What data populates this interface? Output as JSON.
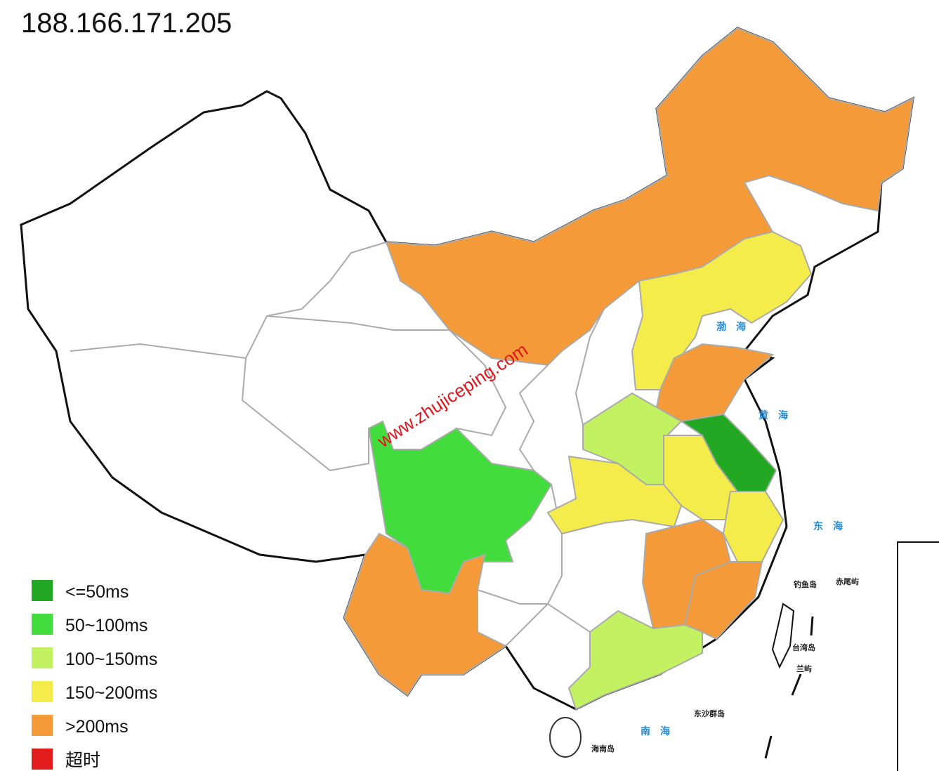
{
  "header": {
    "title": "188.166.171.205"
  },
  "legend": [
    {
      "label": "<=50ms",
      "color": "#22a822"
    },
    {
      "label": "50~100ms",
      "color": "#42dc3c"
    },
    {
      "label": "100~150ms",
      "color": "#c2f262"
    },
    {
      "label": "150~200ms",
      "color": "#f4ec4a"
    },
    {
      "label": ">200ms",
      "color": "#f49a38"
    },
    {
      "label": "超时",
      "color": "#e21c1c"
    }
  ],
  "watermark": "www.zhujiceping.com",
  "seas": [
    "渤海",
    "黄海",
    "东海",
    "南海"
  ],
  "islands": [
    "钓鱼岛",
    "赤尾屿",
    "台湾岛",
    "兰屿",
    "东沙群岛",
    "海南岛"
  ]
}
